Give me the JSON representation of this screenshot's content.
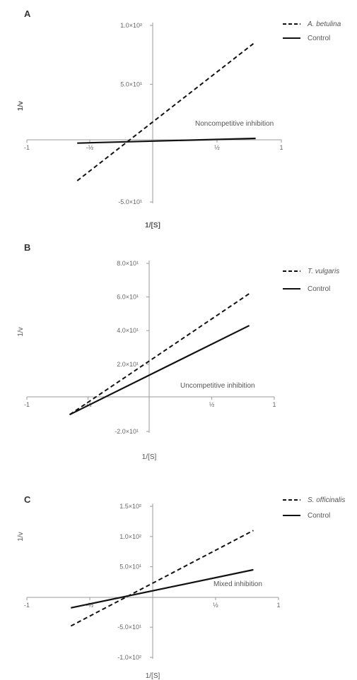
{
  "chart_data": [
    {
      "type": "line",
      "panel_label": "A",
      "xlabel": "1/[S]",
      "ylabel": "1/v",
      "annotation": "Noncompetitive inhibition",
      "x_ticks": [
        "-1",
        "-½",
        "½",
        "1"
      ],
      "xlim": [
        -1,
        1
      ],
      "ylim": [
        -50,
        100
      ],
      "y_ticks": [
        {
          "value": 100,
          "label": "1.0×10²"
        },
        {
          "value": 50,
          "label": "5.0×10¹"
        },
        {
          "value": -50,
          "label": "-5.0×10¹"
        }
      ],
      "series": [
        {
          "name": "A. betulina",
          "style": "dashed",
          "x": [
            -0.6,
            0.8
          ],
          "y": [
            -32,
            86
          ]
        },
        {
          "name": "Control",
          "style": "solid",
          "x": [
            -0.6,
            0.8
          ],
          "y": [
            0,
            4
          ]
        }
      ]
    },
    {
      "type": "line",
      "panel_label": "B",
      "xlabel": "1/[S]",
      "ylabel": "1/v",
      "annotation": "Uncompetitive inhibition",
      "x_ticks": [
        "-1",
        "-½",
        "½",
        "1"
      ],
      "xlim": [
        -1,
        1
      ],
      "ylim": [
        -20,
        80
      ],
      "y_ticks": [
        {
          "value": 80,
          "label": "8.0×10¹"
        },
        {
          "value": 60,
          "label": "6.0×10¹"
        },
        {
          "value": 40,
          "label": "4.0×10¹"
        },
        {
          "value": 20,
          "label": "2.0×10¹"
        },
        {
          "value": -20,
          "label": "-2.0×10¹"
        }
      ],
      "series": [
        {
          "name": "T. vulgaris",
          "style": "dashed",
          "x": [
            -0.65,
            0.8
          ],
          "y": [
            -10,
            62
          ]
        },
        {
          "name": "Control",
          "style": "solid",
          "x": [
            -0.65,
            0.8
          ],
          "y": [
            -10,
            43
          ]
        }
      ]
    },
    {
      "type": "line",
      "panel_label": "C",
      "xlabel": "1/[S]",
      "ylabel": "1/v",
      "annotation": "Mixed inhibition",
      "x_ticks": [
        "-1",
        "-½",
        "½",
        "1"
      ],
      "xlim": [
        -1,
        1
      ],
      "ylim": [
        -100,
        150
      ],
      "y_ticks": [
        {
          "value": 150,
          "label": "1.5×10²"
        },
        {
          "value": 100,
          "label": "1.0×10²"
        },
        {
          "value": 50,
          "label": "5.0×10¹"
        },
        {
          "value": -50,
          "label": "-5.0×10¹"
        },
        {
          "value": -100,
          "label": "-1.0×10²"
        }
      ],
      "series": [
        {
          "name": "S. officinalis",
          "style": "dashed",
          "x": [
            -0.65,
            0.8
          ],
          "y": [
            -48,
            110
          ]
        },
        {
          "name": "Control",
          "style": "solid",
          "x": [
            -0.65,
            0.8
          ],
          "y": [
            -18,
            45
          ]
        }
      ]
    }
  ]
}
